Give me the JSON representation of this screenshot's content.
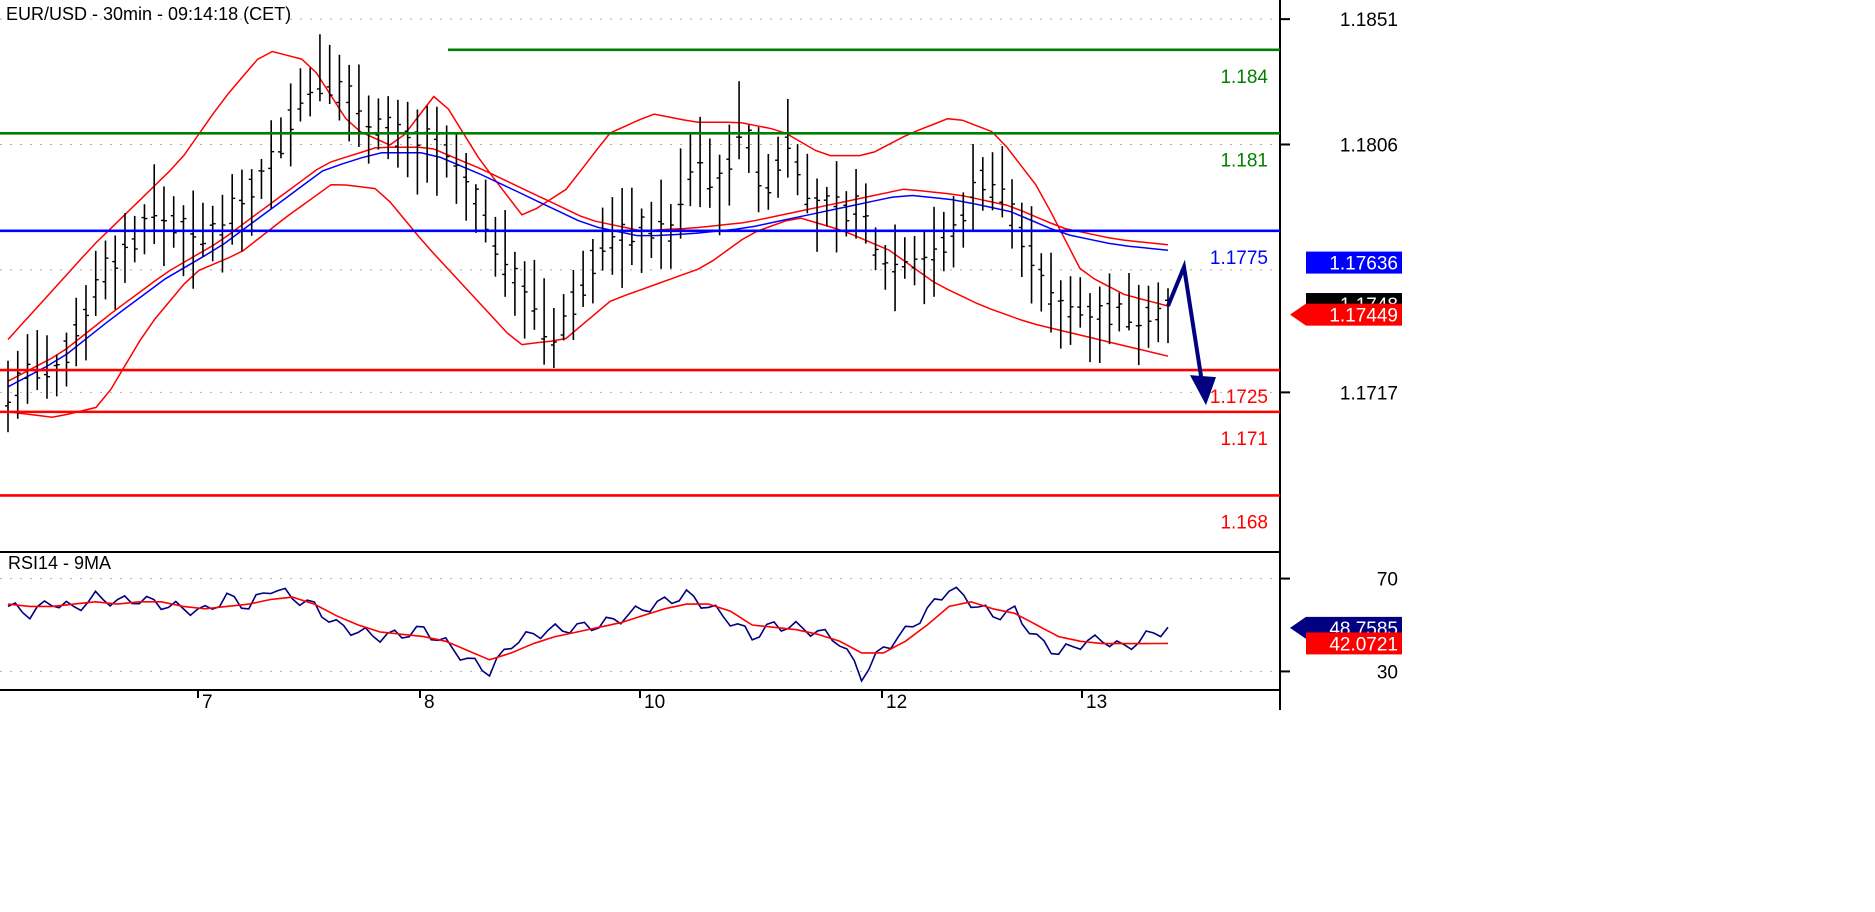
{
  "title": "EUR/USD - 30min - 09:14:18 (CET)",
  "chart_data": {
    "type": "candlestick",
    "symbol": "EUR/USD",
    "interval": "30min",
    "time": "09:14:18 (CET)",
    "x_labels": [
      "7",
      "8",
      "10",
      "12",
      "13"
    ],
    "y_ticks": [
      "1.1851",
      "1.1806",
      "1.1717"
    ],
    "ylim": [
      1.1664,
      1.1855
    ],
    "price_path": [
      1.1716,
      1.1726,
      1.1721,
      1.1742,
      1.176,
      1.1768,
      1.1781,
      1.1778,
      1.177,
      1.1778,
      1.1786,
      1.1798,
      1.1816,
      1.183,
      1.1826,
      1.1818,
      1.1812,
      1.1806,
      1.1808,
      1.1795,
      1.1782,
      1.1764,
      1.1752,
      1.1734,
      1.1751,
      1.177,
      1.1773,
      1.1776,
      1.1775,
      1.1802,
      1.179,
      1.1814,
      1.1788,
      1.181,
      1.1782,
      1.1783,
      1.1783,
      1.1763,
      1.1766,
      1.1765,
      1.1774,
      1.1795,
      1.179,
      1.177,
      1.175,
      1.1748,
      1.1746,
      1.1745,
      1.1746,
      1.1748
    ],
    "mid_band": [
      1.1721,
      1.1731,
      1.1746,
      1.176,
      1.1771,
      1.1785,
      1.1799,
      1.1805,
      1.1805,
      1.1797,
      1.1788,
      1.1779,
      1.1775,
      1.1776,
      1.1778,
      1.1782,
      1.1786,
      1.179,
      1.1788,
      1.1784,
      1.1776,
      1.1772,
      1.177
    ],
    "upper_band": [
      1.1736,
      1.1753,
      1.177,
      1.1785,
      1.18,
      1.1822,
      1.184,
      1.1836,
      1.1812,
      1.1805,
      1.1825,
      1.18,
      1.178,
      1.179,
      1.181,
      1.1817,
      1.1814,
      1.1814,
      1.1811,
      1.1802,
      1.1802,
      1.181,
      1.1816,
      1.181,
      1.179,
      1.176,
      1.1752,
      1.1748
    ],
    "lower_band": [
      1.171,
      1.1708,
      1.1712,
      1.174,
      1.176,
      1.1767,
      1.178,
      1.1792,
      1.179,
      1.177,
      1.1752,
      1.1734,
      1.1736,
      1.175,
      1.1756,
      1.1762,
      1.1774,
      1.178,
      1.1775,
      1.1768,
      1.1756,
      1.1748,
      1.1742,
      1.1738,
      1.1734,
      1.173
    ],
    "horizontal_lines": [
      {
        "value": 1.184,
        "label": "1.184",
        "color": "#008000",
        "from": 0.35
      },
      {
        "value": 1.181,
        "label": "1.181",
        "color": "#008000",
        "from": 0.0
      },
      {
        "value": 1.1775,
        "label": "1.1775",
        "color": "#0000ff",
        "from": 0.0
      },
      {
        "value": 1.1725,
        "label": "1.1725",
        "color": "#ff0000",
        "from": 0.0
      },
      {
        "value": 1.171,
        "label": "1.171",
        "color": "#ff0000",
        "from": 0.0
      },
      {
        "value": 1.168,
        "label": "1.168",
        "color": "#ff0000",
        "from": 0.0
      }
    ],
    "price_tags": [
      {
        "label": "1.17636",
        "bg": "#0000ff",
        "value": 1.17636
      },
      {
        "label": "1.1748",
        "bg": "#000000",
        "value": 1.1748
      },
      {
        "label": "1.17449",
        "bg": "#ff0000",
        "value": 1.17449
      }
    ],
    "forecast_arrow": {
      "from": 1.1748,
      "peak": 1.1762,
      "to": 1.1716
    },
    "rsi": {
      "label": "RSI14 - 9MA",
      "ylim": [
        22,
        78
      ],
      "ticks": [
        "70",
        "30"
      ],
      "rsi_values": [
        58,
        55,
        60,
        57,
        62,
        60,
        61,
        59,
        57,
        56,
        62,
        58,
        66,
        62,
        58,
        50,
        47,
        45,
        46,
        48,
        42,
        35,
        30,
        42,
        46,
        48,
        49,
        50,
        53,
        57,
        60,
        63,
        58,
        52,
        45,
        50,
        49,
        47,
        43,
        28,
        40,
        47,
        56,
        66,
        60,
        54,
        56,
        44,
        38,
        42,
        44,
        40,
        45,
        48.7585
      ],
      "ma_values": [
        59,
        58,
        58,
        59,
        60,
        59,
        60,
        60,
        58,
        57,
        58,
        59,
        61,
        62,
        59,
        54,
        50,
        47,
        46,
        45,
        43,
        39,
        35,
        38,
        42,
        45,
        47,
        49,
        51,
        54,
        57,
        59,
        59,
        56,
        50,
        49,
        48,
        46,
        43,
        38,
        38,
        43,
        50,
        58,
        60,
        57,
        55,
        50,
        45,
        43,
        42,
        42,
        42,
        42.0721
      ],
      "tags": [
        {
          "label": "48.7585",
          "bg": "#000080",
          "value": 48.7585
        },
        {
          "label": "42.0721",
          "bg": "#ff0000",
          "value": 42.0721
        }
      ]
    },
    "colors": {
      "price": "#000000",
      "bands": "#ff0000",
      "ma": "#0000ff",
      "rsi": "#000080",
      "rsi_ma": "#ff0000"
    }
  }
}
